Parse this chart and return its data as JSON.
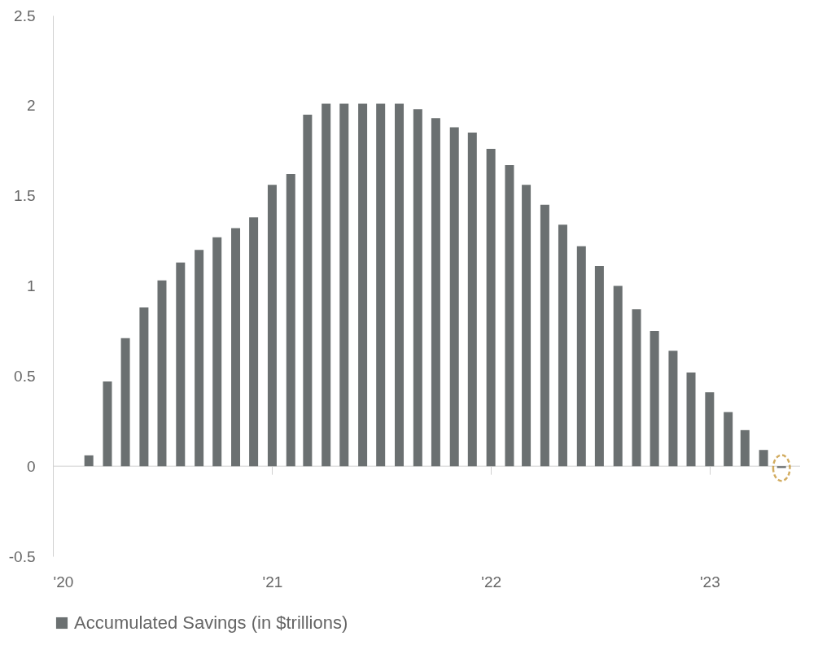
{
  "chart_data": {
    "type": "bar",
    "x": [
      "2020-03",
      "2020-04",
      "2020-05",
      "2020-06",
      "2020-07",
      "2020-08",
      "2020-09",
      "2020-10",
      "2020-11",
      "2020-12",
      "2021-01",
      "2021-02",
      "2021-03",
      "2021-04",
      "2021-05",
      "2021-06",
      "2021-07",
      "2021-08",
      "2021-09",
      "2021-10",
      "2021-11",
      "2021-12",
      "2022-01",
      "2022-02",
      "2022-03",
      "2022-04",
      "2022-05",
      "2022-06",
      "2022-07",
      "2022-08",
      "2022-09",
      "2022-10",
      "2022-11",
      "2022-12",
      "2023-01",
      "2023-02",
      "2023-03",
      "2023-04",
      "2023-05"
    ],
    "series": [
      {
        "name": "Accumulated Savings (in $trillions)",
        "color": "#6b7071",
        "values": [
          0.06,
          0.47,
          0.71,
          0.88,
          1.03,
          1.13,
          1.2,
          1.27,
          1.32,
          1.38,
          1.56,
          1.62,
          1.95,
          2.01,
          2.01,
          2.01,
          2.01,
          2.01,
          1.98,
          1.93,
          1.88,
          1.85,
          1.76,
          1.67,
          1.56,
          1.45,
          1.34,
          1.22,
          1.11,
          1.0,
          0.87,
          0.75,
          0.64,
          0.52,
          0.41,
          0.3,
          0.2,
          0.09,
          -0.01
        ]
      }
    ],
    "xlim": [
      "2020-01",
      "2023-06"
    ],
    "xticks": [
      {
        "value": "2020",
        "label": "'20"
      },
      {
        "value": "2021",
        "label": "'21"
      },
      {
        "value": "2022",
        "label": "'22"
      },
      {
        "value": "2023",
        "label": "'23"
      }
    ],
    "ylim": [
      -0.5,
      2.5
    ],
    "yticks": [
      -0.5,
      0,
      0.5,
      1,
      1.5,
      2,
      2.5
    ],
    "grid": false,
    "ref_lines": [
      {
        "axis": "y",
        "value": 0,
        "color": "#d0d0d0"
      }
    ],
    "legend": "bottom"
  }
}
